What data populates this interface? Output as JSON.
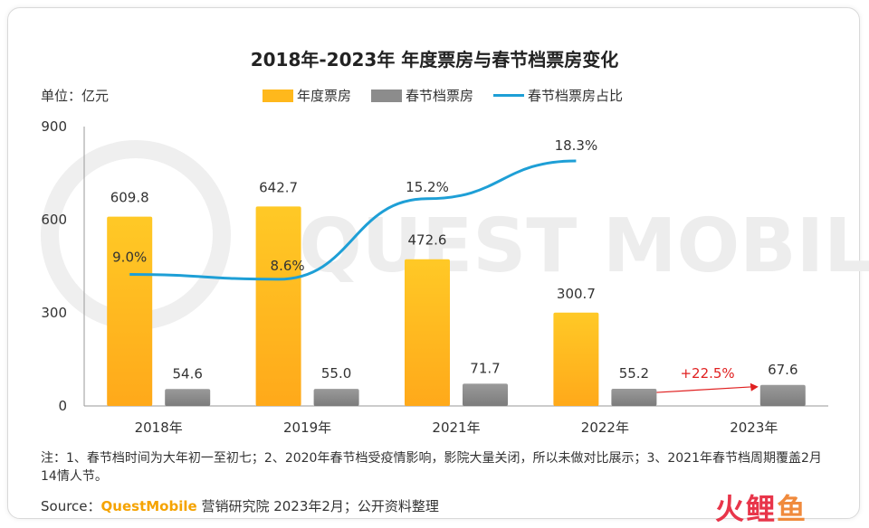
{
  "title": "2018年-2023年 年度票房与春节档票房变化",
  "unit_label": "单位：亿元",
  "legend": [
    {
      "label": "年度票房",
      "color": "#FFB81C",
      "kind": "bar"
    },
    {
      "label": "春节档票房",
      "color": "#8C8C8C",
      "kind": "bar"
    },
    {
      "label": "春节档票房占比",
      "color": "#1E9FD6",
      "kind": "line"
    }
  ],
  "note": "注：1、春节档时间为大年初一至初七；2、2020年春节档受疫情影响，影院大量关闭，所以未做对比展示；3、2021年春节档周期覆盖2月14情人节。",
  "source": {
    "prefix": "Source：",
    "brand": "QuestMobile",
    "suffix": " 营销研究院 2023年2月；公开资料整理"
  },
  "logo": {
    "text": "火鲤",
    "fish": "鱼"
  },
  "chart_data": {
    "type": "bar",
    "categories": [
      "2018年",
      "2019年",
      "2021年",
      "2022年",
      "2023年"
    ],
    "series": [
      {
        "name": "年度票房",
        "values": [
          609.8,
          642.7,
          472.6,
          300.7,
          null
        ],
        "labels": [
          "609.8",
          "642.7",
          "472.6",
          "300.7",
          ""
        ]
      },
      {
        "name": "春节档票房",
        "values": [
          54.6,
          55.0,
          71.7,
          55.2,
          67.6
        ],
        "labels": [
          "54.6",
          "55.0",
          "71.7",
          "55.2",
          "67.6"
        ]
      },
      {
        "name": "春节档票房占比",
        "type": "line",
        "values": [
          9.0,
          8.6,
          15.2,
          18.3,
          null
        ],
        "labels": [
          "9.0%",
          "8.6%",
          "15.2%",
          "18.3%",
          ""
        ]
      }
    ],
    "yticks": [
      "0",
      "300",
      "600",
      "900"
    ],
    "ylim": [
      0,
      900
    ],
    "annotation": {
      "text": "+22.5%",
      "color": "#E02020"
    },
    "legend_position": "top"
  }
}
